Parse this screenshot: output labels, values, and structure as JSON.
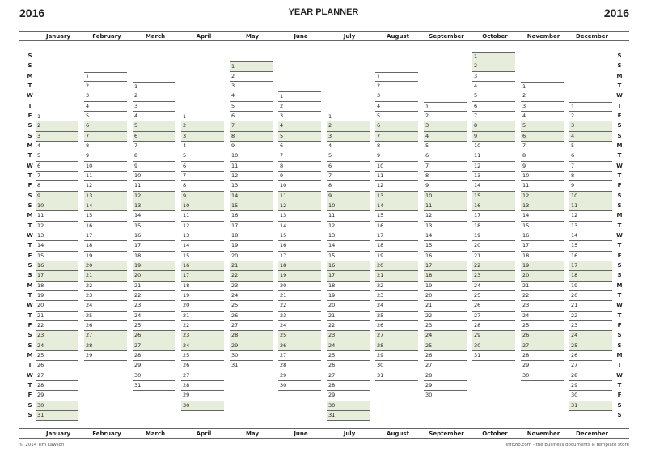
{
  "year": "2016",
  "title": "YEAR PLANNER",
  "weekday_letters": [
    "S",
    "S",
    "M",
    "T",
    "W",
    "T",
    "F"
  ],
  "weekend_color": "#e6eedb",
  "months": [
    {
      "name": "January",
      "days": 31,
      "first_weekday": "Fri"
    },
    {
      "name": "February",
      "days": 29,
      "first_weekday": "Mon"
    },
    {
      "name": "March",
      "days": 31,
      "first_weekday": "Tue"
    },
    {
      "name": "April",
      "days": 30,
      "first_weekday": "Fri"
    },
    {
      "name": "May",
      "days": 31,
      "first_weekday": "Sun"
    },
    {
      "name": "June",
      "days": 30,
      "first_weekday": "Wed"
    },
    {
      "name": "July",
      "days": 31,
      "first_weekday": "Fri"
    },
    {
      "name": "August",
      "days": 31,
      "first_weekday": "Mon"
    },
    {
      "name": "September",
      "days": 30,
      "first_weekday": "Thu"
    },
    {
      "name": "October",
      "days": 31,
      "first_weekday": "Sat"
    },
    {
      "name": "November",
      "days": 30,
      "first_weekday": "Tue"
    },
    {
      "name": "December",
      "days": 31,
      "first_weekday": "Thu"
    }
  ],
  "footer": {
    "left": "© 2014 Tim Lawson",
    "right": "infozio.com - the business documents & template store"
  }
}
